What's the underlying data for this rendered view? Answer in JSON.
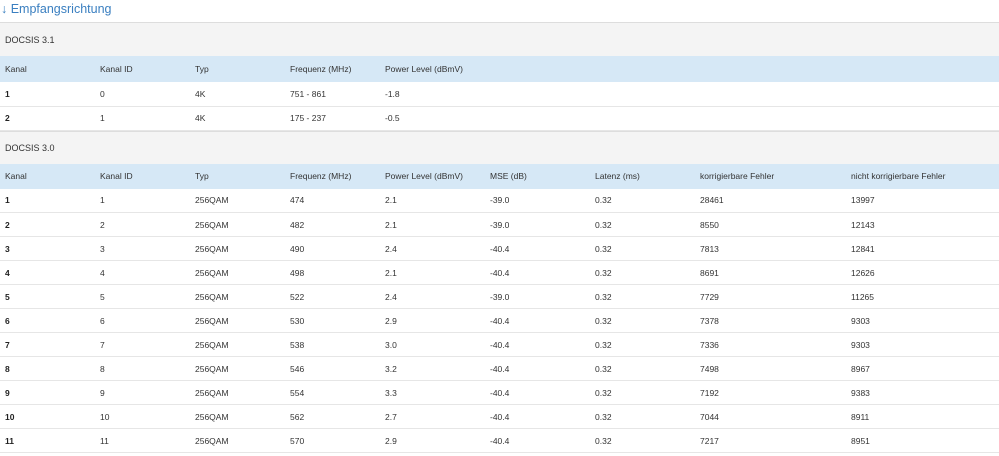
{
  "page": {
    "heading": "↓ Empfangsrichtung"
  },
  "docsis31": {
    "title": "DOCSIS 3.1",
    "headers": [
      "Kanal",
      "Kanal ID",
      "Typ",
      "Frequenz (MHz)",
      "Power Level (dBmV)"
    ],
    "rows": [
      [
        "1",
        "0",
        "4K",
        "751 - 861",
        "-1.8"
      ],
      [
        "2",
        "1",
        "4K",
        "175 - 237",
        "-0.5"
      ]
    ]
  },
  "docsis30": {
    "title": "DOCSIS 3.0",
    "headers": [
      "Kanal",
      "Kanal ID",
      "Typ",
      "Frequenz (MHz)",
      "Power Level (dBmV)",
      "MSE (dB)",
      "Latenz (ms)",
      "korrigierbare Fehler",
      "nicht korrigierbare Fehler"
    ],
    "rows": [
      [
        "1",
        "1",
        "256QAM",
        "474",
        "2.1",
        "-39.0",
        "0.32",
        "28461",
        "13997"
      ],
      [
        "2",
        "2",
        "256QAM",
        "482",
        "2.1",
        "-39.0",
        "0.32",
        "8550",
        "12143"
      ],
      [
        "3",
        "3",
        "256QAM",
        "490",
        "2.4",
        "-40.4",
        "0.32",
        "7813",
        "12841"
      ],
      [
        "4",
        "4",
        "256QAM",
        "498",
        "2.1",
        "-40.4",
        "0.32",
        "8691",
        "12626"
      ],
      [
        "5",
        "5",
        "256QAM",
        "522",
        "2.4",
        "-39.0",
        "0.32",
        "7729",
        "11265"
      ],
      [
        "6",
        "6",
        "256QAM",
        "530",
        "2.9",
        "-40.4",
        "0.32",
        "7378",
        "9303"
      ],
      [
        "7",
        "7",
        "256QAM",
        "538",
        "3.0",
        "-40.4",
        "0.32",
        "7336",
        "9303"
      ],
      [
        "8",
        "8",
        "256QAM",
        "546",
        "3.2",
        "-40.4",
        "0.32",
        "7498",
        "8967"
      ],
      [
        "9",
        "9",
        "256QAM",
        "554",
        "3.3",
        "-40.4",
        "0.32",
        "7192",
        "9383"
      ],
      [
        "10",
        "10",
        "256QAM",
        "562",
        "2.7",
        "-40.4",
        "0.32",
        "7044",
        "8911"
      ],
      [
        "11",
        "11",
        "256QAM",
        "570",
        "2.9",
        "-40.4",
        "0.32",
        "7217",
        "8951"
      ]
    ]
  }
}
